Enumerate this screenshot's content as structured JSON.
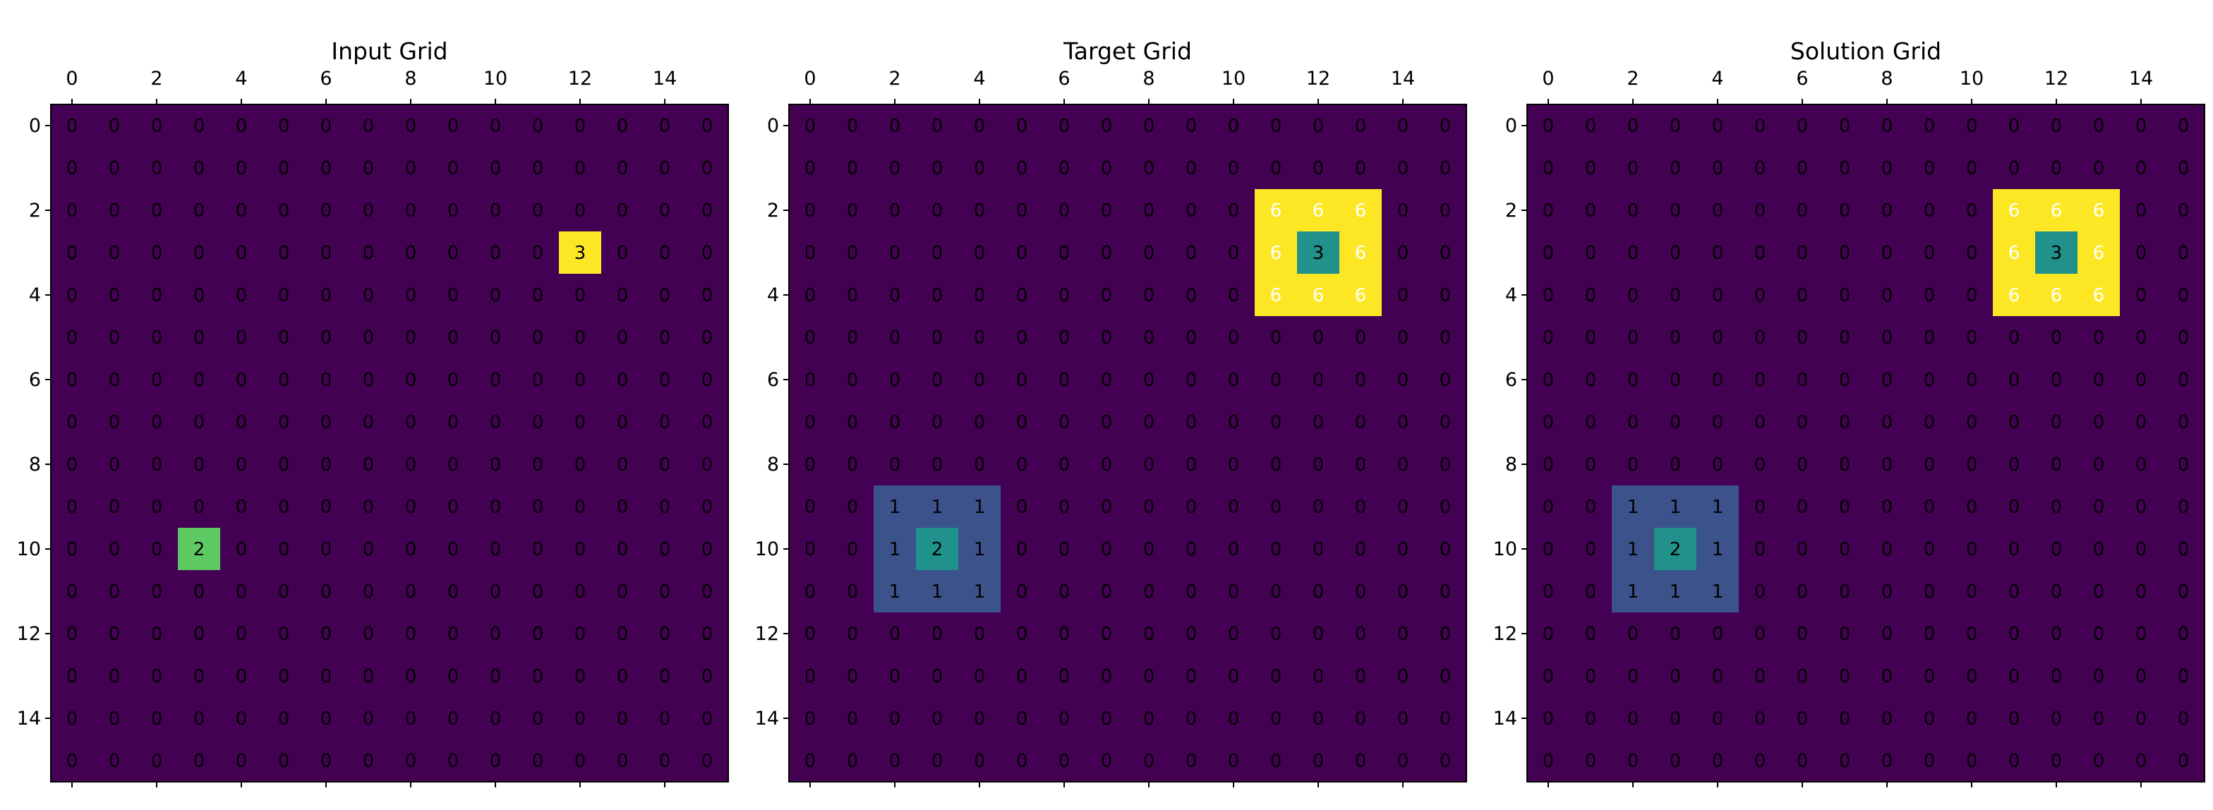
{
  "chart_data": [
    {
      "type": "heatmap",
      "title": "Input Grid",
      "xlabel": "",
      "ylabel": "",
      "x_ticks": [
        0,
        2,
        4,
        6,
        8,
        10,
        12,
        14
      ],
      "y_ticks": [
        0,
        2,
        4,
        6,
        8,
        10,
        12,
        14
      ],
      "rows": 16,
      "cols": 16,
      "cells": [
        {
          "row": 3,
          "col": 12,
          "value": 3
        },
        {
          "row": 10,
          "col": 3,
          "value": 2
        }
      ]
    },
    {
      "type": "heatmap",
      "title": "Target Grid",
      "xlabel": "",
      "ylabel": "",
      "x_ticks": [
        0,
        2,
        4,
        6,
        8,
        10,
        12,
        14
      ],
      "y_ticks": [
        0,
        2,
        4,
        6,
        8,
        10,
        12,
        14
      ],
      "rows": 16,
      "cols": 16,
      "cells": [
        {
          "row": 2,
          "col": 11,
          "value": 6
        },
        {
          "row": 2,
          "col": 12,
          "value": 6
        },
        {
          "row": 2,
          "col": 13,
          "value": 6
        },
        {
          "row": 3,
          "col": 11,
          "value": 6
        },
        {
          "row": 3,
          "col": 12,
          "value": 3
        },
        {
          "row": 3,
          "col": 13,
          "value": 6
        },
        {
          "row": 4,
          "col": 11,
          "value": 6
        },
        {
          "row": 4,
          "col": 12,
          "value": 6
        },
        {
          "row": 4,
          "col": 13,
          "value": 6
        },
        {
          "row": 9,
          "col": 2,
          "value": 1
        },
        {
          "row": 9,
          "col": 3,
          "value": 1
        },
        {
          "row": 9,
          "col": 4,
          "value": 1
        },
        {
          "row": 10,
          "col": 2,
          "value": 1
        },
        {
          "row": 10,
          "col": 3,
          "value": 2
        },
        {
          "row": 10,
          "col": 4,
          "value": 1
        },
        {
          "row": 11,
          "col": 2,
          "value": 1
        },
        {
          "row": 11,
          "col": 3,
          "value": 1
        },
        {
          "row": 11,
          "col": 4,
          "value": 1
        }
      ]
    },
    {
      "type": "heatmap",
      "title": "Solution Grid",
      "xlabel": "",
      "ylabel": "",
      "x_ticks": [
        0,
        2,
        4,
        6,
        8,
        10,
        12,
        14
      ],
      "y_ticks": [
        0,
        2,
        4,
        6,
        8,
        10,
        12,
        14
      ],
      "rows": 16,
      "cols": 16,
      "cells": [
        {
          "row": 2,
          "col": 11,
          "value": 6
        },
        {
          "row": 2,
          "col": 12,
          "value": 6
        },
        {
          "row": 2,
          "col": 13,
          "value": 6
        },
        {
          "row": 3,
          "col": 11,
          "value": 6
        },
        {
          "row": 3,
          "col": 12,
          "value": 3
        },
        {
          "row": 3,
          "col": 13,
          "value": 6
        },
        {
          "row": 4,
          "col": 11,
          "value": 6
        },
        {
          "row": 4,
          "col": 12,
          "value": 6
        },
        {
          "row": 4,
          "col": 13,
          "value": 6
        },
        {
          "row": 9,
          "col": 2,
          "value": 1
        },
        {
          "row": 9,
          "col": 3,
          "value": 1
        },
        {
          "row": 9,
          "col": 4,
          "value": 1
        },
        {
          "row": 10,
          "col": 2,
          "value": 1
        },
        {
          "row": 10,
          "col": 3,
          "value": 2
        },
        {
          "row": 10,
          "col": 4,
          "value": 1
        },
        {
          "row": 11,
          "col": 2,
          "value": 1
        },
        {
          "row": 11,
          "col": 3,
          "value": 1
        },
        {
          "row": 11,
          "col": 4,
          "value": 1
        }
      ]
    }
  ],
  "colormap": {
    "name": "viridis",
    "input_grid": {
      "0": "#440154",
      "2": "#5ec962",
      "3": "#fde725"
    },
    "output_grids": {
      "0": "#440154",
      "1": "#3b528b",
      "2": "#21918c",
      "3": "#21918c",
      "6": "#fde725"
    }
  }
}
